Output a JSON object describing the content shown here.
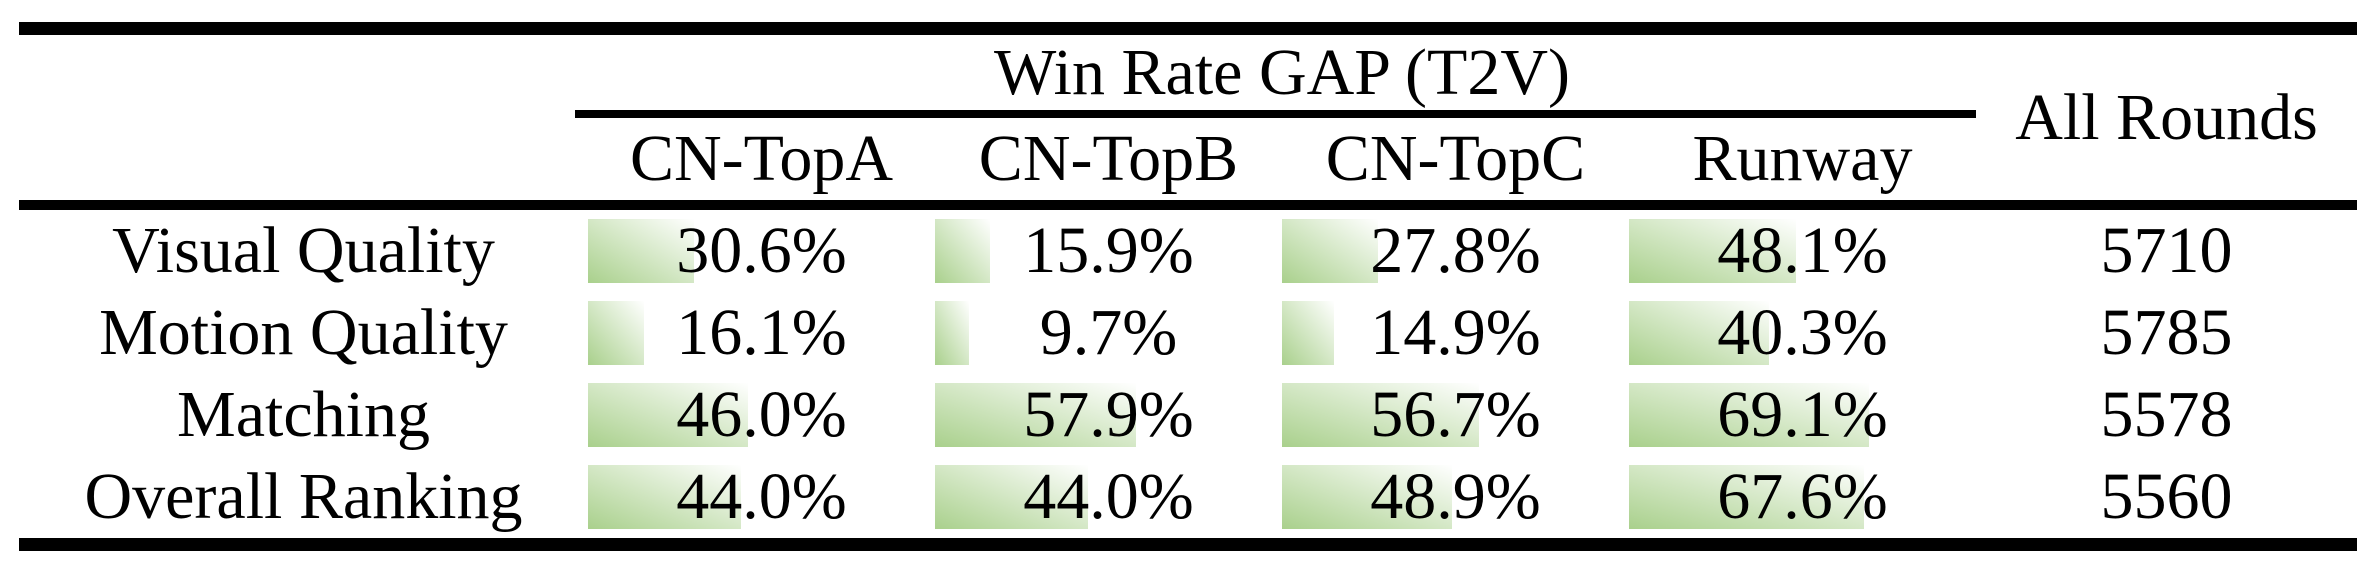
{
  "table": {
    "title": "Win Rate GAP (T2V)",
    "all_rounds_header": "All Rounds",
    "columns": [
      "CN-TopA",
      "CN-TopB",
      "CN-TopC",
      "Runway"
    ],
    "rows": [
      {
        "label": "Visual Quality",
        "values": [
          "30.6%",
          "15.9%",
          "27.8%",
          "48.1%"
        ],
        "all_rounds": "5710"
      },
      {
        "label": "Motion Quality",
        "values": [
          "16.1%",
          "9.7%",
          "14.9%",
          "40.3%"
        ],
        "all_rounds": "5785"
      },
      {
        "label": "Matching",
        "values": [
          "46.0%",
          "57.9%",
          "56.7%",
          "69.1%"
        ],
        "all_rounds": "5578"
      },
      {
        "label": "Overall Ranking",
        "values": [
          "44.0%",
          "44.0%",
          "48.9%",
          "67.6%"
        ],
        "all_rounds": "5560"
      }
    ]
  },
  "colors": {
    "bar_green": "#a9d08c",
    "bar_fade": "#ffffff",
    "rule_black": "#000000",
    "text": "#000000",
    "background": "#ffffff"
  },
  "chart_data": {
    "type": "table",
    "title": "Win Rate GAP (T2V)",
    "columns": [
      "CN-TopA",
      "CN-TopB",
      "CN-TopC",
      "Runway",
      "All Rounds"
    ],
    "row_labels": [
      "Visual Quality",
      "Motion Quality",
      "Matching",
      "Overall Ranking"
    ],
    "series": [
      {
        "name": "CN-TopA",
        "values": [
          30.6,
          16.1,
          46.0,
          44.0
        ]
      },
      {
        "name": "CN-TopB",
        "values": [
          15.9,
          9.7,
          57.9,
          44.0
        ]
      },
      {
        "name": "CN-TopC",
        "values": [
          27.8,
          14.9,
          56.7,
          48.9
        ]
      },
      {
        "name": "Runway",
        "values": [
          48.1,
          40.3,
          69.1,
          67.6
        ]
      }
    ],
    "all_rounds": [
      5710,
      5785,
      5578,
      5560
    ],
    "unit": "percent",
    "bar_style": "green-to-white gradient data bar, width proportional to value, 0-100% maps to full cell width",
    "grid": false,
    "legend_position": "none"
  }
}
